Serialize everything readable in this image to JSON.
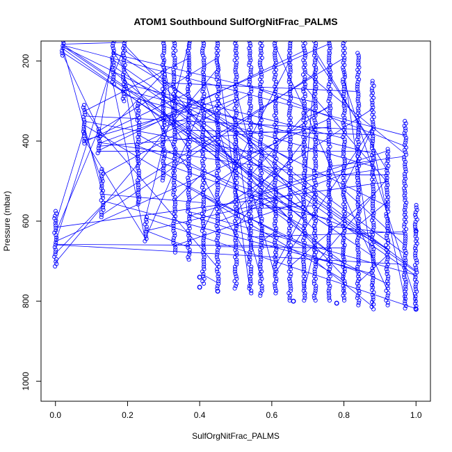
{
  "chart_data": {
    "type": "scatter",
    "title": "ATOM1 Southbound SulfOrgNitFrac_PALMS",
    "xlabel": "SulfOrgNitFrac_PALMS",
    "ylabel": "Pressure (mbar)",
    "xlim": [
      -0.04,
      1.04
    ],
    "ylim": [
      1050,
      150
    ],
    "y_reversed": true,
    "xticks": [
      "0.0",
      "0.2",
      "0.4",
      "0.6",
      "0.8",
      "1.0"
    ],
    "yticks": [
      "200",
      "400",
      "600",
      "800",
      "1000"
    ],
    "marker": "open-circle",
    "connected": true,
    "series_color": "#0000ff",
    "grid": false,
    "legend": "none",
    "series": [
      {
        "columns": [
          {
            "x": 0.0,
            "p_top": 575,
            "p_bottom": 715
          },
          {
            "x": 0.02,
            "p_top": 150,
            "p_bottom": 190
          },
          {
            "x": 0.08,
            "p_top": 310,
            "p_bottom": 410
          },
          {
            "x": 0.12,
            "p_top": 370,
            "p_bottom": 430
          },
          {
            "x": 0.13,
            "p_top": 470,
            "p_bottom": 590
          },
          {
            "x": 0.16,
            "p_top": 150,
            "p_bottom": 260
          },
          {
            "x": 0.19,
            "p_top": 150,
            "p_bottom": 300
          },
          {
            "x": 0.23,
            "p_top": 300,
            "p_bottom": 560
          },
          {
            "x": 0.25,
            "p_top": 590,
            "p_bottom": 650
          },
          {
            "x": 0.3,
            "p_top": 150,
            "p_bottom": 500
          },
          {
            "x": 0.33,
            "p_top": 150,
            "p_bottom": 680
          },
          {
            "x": 0.37,
            "p_top": 150,
            "p_bottom": 700
          },
          {
            "x": 0.41,
            "p_top": 150,
            "p_bottom": 760
          },
          {
            "x": 0.45,
            "p_top": 150,
            "p_bottom": 770
          },
          {
            "x": 0.5,
            "p_top": 150,
            "p_bottom": 770
          },
          {
            "x": 0.54,
            "p_top": 150,
            "p_bottom": 780
          },
          {
            "x": 0.57,
            "p_top": 150,
            "p_bottom": 790
          },
          {
            "x": 0.61,
            "p_top": 150,
            "p_bottom": 780
          },
          {
            "x": 0.65,
            "p_top": 150,
            "p_bottom": 800
          },
          {
            "x": 0.69,
            "p_top": 150,
            "p_bottom": 800
          },
          {
            "x": 0.72,
            "p_top": 150,
            "p_bottom": 800
          },
          {
            "x": 0.76,
            "p_top": 150,
            "p_bottom": 800
          },
          {
            "x": 0.8,
            "p_top": 150,
            "p_bottom": 800
          },
          {
            "x": 0.84,
            "p_top": 180,
            "p_bottom": 810
          },
          {
            "x": 0.88,
            "p_top": 250,
            "p_bottom": 820
          },
          {
            "x": 0.92,
            "p_top": 420,
            "p_bottom": 810
          },
          {
            "x": 0.97,
            "p_top": 350,
            "p_bottom": 820
          },
          {
            "x": 1.0,
            "p_top": 560,
            "p_bottom": 820
          }
        ],
        "isolated_points": [
          {
            "x": 0.4,
            "p": 740
          },
          {
            "x": 0.4,
            "p": 765
          },
          {
            "x": 0.45,
            "p": 775
          },
          {
            "x": 0.66,
            "p": 800
          },
          {
            "x": 0.78,
            "p": 805
          },
          {
            "x": 1.0,
            "p": 625
          },
          {
            "x": 1.0,
            "p": 820
          }
        ]
      }
    ]
  }
}
